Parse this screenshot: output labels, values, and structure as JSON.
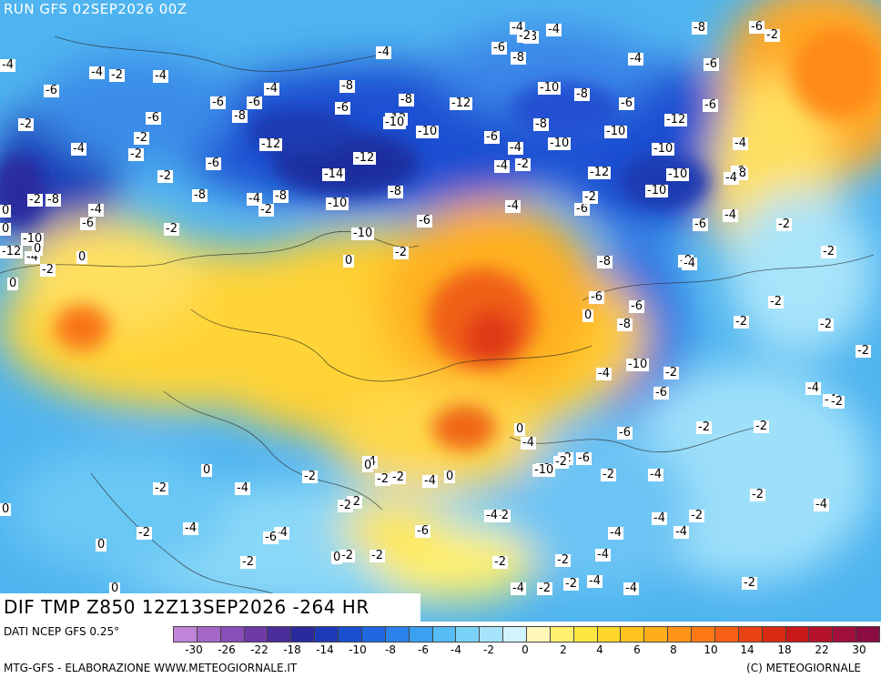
{
  "header": {
    "run_title": "RUN GFS 02SEP2026 00Z"
  },
  "map": {
    "title": "DIF TMP Z850 12Z13SEP2026 -264 HR",
    "labels": [
      "-6",
      "-6",
      "-4",
      "-2",
      "-2",
      "-4",
      "-8",
      "-6",
      "-4",
      "-6",
      "-6",
      "-4",
      "-2",
      "-6",
      "-4",
      "-2",
      "-8",
      "-4",
      "-8",
      "-6",
      "-8",
      "-12",
      "-10",
      "-12",
      "-10",
      "-10",
      "-6",
      "-10",
      "-8",
      "-6",
      "-8",
      "-8",
      "-12",
      "-12",
      "-6",
      "-12",
      "-4",
      "-10",
      "-4",
      "-6",
      "-14",
      "-2",
      "-6",
      "-12",
      "-10",
      "-2",
      "-8",
      "-8",
      "-10",
      "-4",
      "-10",
      "-6",
      "-2",
      "-10",
      "-6",
      "-2",
      "-4",
      "-8",
      "-6",
      "-2",
      "-8",
      "-10",
      "-4",
      "-6",
      "-6",
      "-8",
      "-4",
      "-2",
      "-2",
      "-2",
      "-8",
      "-2",
      "-10",
      "-2",
      "-6",
      "-4",
      "-2",
      "-2",
      "-4",
      "-4",
      "-6",
      "-2",
      "-4",
      "-6",
      "-6",
      "-2",
      "-2",
      "-4",
      "-2",
      "-6",
      "-4",
      "-2",
      "-6",
      "-2",
      "-4",
      "-2",
      "-6",
      "-4",
      "-2",
      "-4",
      "-4",
      "-4",
      "-2",
      "-2",
      "-2",
      "-2",
      "-4",
      "-4",
      "-2",
      "-2",
      "-4",
      "-4",
      "-2",
      "-4",
      "-2",
      "-2",
      "-2",
      "-2",
      "-4",
      "-2",
      "-4",
      "-2",
      "-6",
      "-4",
      "-4",
      "-2",
      "-2",
      "-2",
      "-4",
      "-8",
      "-8",
      "-6",
      "-6",
      "-8",
      "-4",
      "-10",
      "-4",
      "-2",
      "-2",
      "-4",
      "-4",
      "-8",
      "0",
      "0",
      "0",
      "0",
      "0",
      "0",
      "0",
      "0",
      "0",
      "0",
      "0",
      "0",
      "0",
      "0",
      "0",
      "-12",
      "-10",
      "-2",
      "-4",
      "-2",
      "-6",
      "-4",
      "-2",
      "-4",
      "-6",
      "-2",
      "-4",
      "-6",
      "-4",
      "-2",
      "-2",
      "-6"
    ]
  },
  "legend": {
    "source": "DATI NCEP GFS 0.25°",
    "colors": [
      "#c084d8",
      "#a568c8",
      "#8a4eb8",
      "#6e3aa8",
      "#4a2c9a",
      "#2a2a9c",
      "#1f3ab8",
      "#1a50d0",
      "#1f68e0",
      "#2a82ec",
      "#3aa0f0",
      "#55bcf4",
      "#7ad2f8",
      "#a6e4fb",
      "#d2f2fd",
      "#fff6b8",
      "#fff070",
      "#ffe640",
      "#ffd62a",
      "#ffc21e",
      "#ffad1a",
      "#ff9418",
      "#ff7a16",
      "#f76014",
      "#ea4412",
      "#d92a12",
      "#c81a1a",
      "#b4122a",
      "#a00e3a",
      "#8a0c42"
    ],
    "ticks": [
      "-30",
      "-26",
      "-22",
      "-18",
      "-14",
      "-10",
      "-8",
      "-6",
      "-4",
      "-2",
      "0",
      "2",
      "4",
      "6",
      "8",
      "10",
      "14",
      "18",
      "22",
      "30"
    ]
  },
  "footer": {
    "left": "MTG-GFS - ELABORAZIONE WWW.METEOGIORNALE.IT",
    "right": "(C) METEOGIORNALE"
  }
}
